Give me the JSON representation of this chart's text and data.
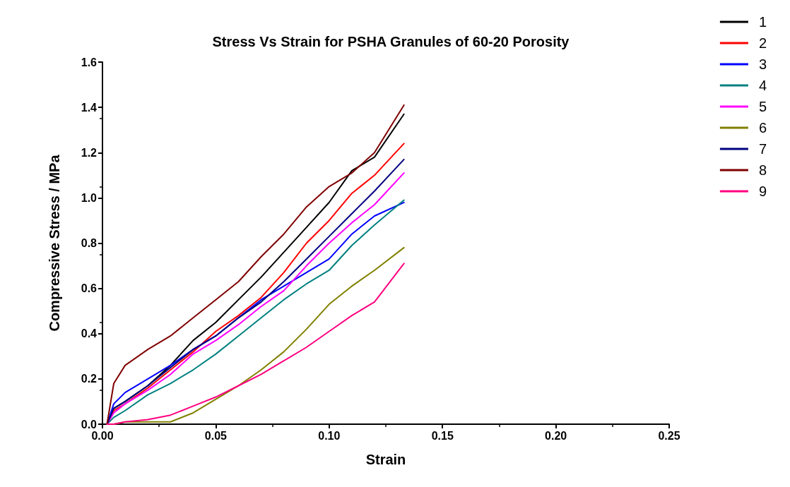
{
  "chart_data": {
    "type": "line",
    "title": "Stress Vs Strain for PSHA Granules of 60-20 Porosity",
    "xlabel": "Strain",
    "ylabel": "Compressive Stress / MPa",
    "xlim": [
      0,
      0.25
    ],
    "xticks": [
      {
        "value": 0,
        "label": "0.00"
      },
      {
        "value": 0.05,
        "label": "0.05"
      },
      {
        "value": 0.1,
        "label": "0.10"
      },
      {
        "value": 0.15,
        "label": "0.15"
      },
      {
        "value": 0.2,
        "label": "0.20"
      },
      {
        "value": 0.25,
        "label": "0.25"
      }
    ],
    "ylim": [
      0,
      1.6
    ],
    "yticks": [
      {
        "value": 0,
        "label": "0.0"
      },
      {
        "value": 0.2,
        "label": "0.2"
      },
      {
        "value": 0.4,
        "label": "0.4"
      },
      {
        "value": 0.6,
        "label": "0.6"
      },
      {
        "value": 0.8,
        "label": "0.8"
      },
      {
        "value": 1,
        "label": "1.0"
      },
      {
        "value": 1.2,
        "label": "1.2"
      },
      {
        "value": 1.4,
        "label": "1.4"
      },
      {
        "value": 1.6,
        "label": "1.6"
      }
    ],
    "grid": false,
    "legend": "top right",
    "marker": "none",
    "line_style": "solid",
    "x": [
      0.002,
      0.005,
      0.01,
      0.02,
      0.03,
      0.04,
      0.05,
      0.06,
      0.07,
      0.08,
      0.09,
      0.1,
      0.11,
      0.12,
      0.133
    ],
    "series": [
      {
        "name": "1",
        "color": "#000000",
        "values": [
          0,
          0.07,
          0.1,
          0.17,
          0.26,
          0.37,
          0.45,
          0.55,
          0.65,
          0.76,
          0.87,
          0.98,
          1.12,
          1.18,
          1.37
        ]
      },
      {
        "name": "2",
        "color": "#ff0000",
        "values": [
          0,
          0.06,
          0.09,
          0.16,
          0.24,
          0.32,
          0.41,
          0.48,
          0.56,
          0.67,
          0.8,
          0.9,
          1.02,
          1.1,
          1.24
        ]
      },
      {
        "name": "3",
        "color": "#0000ff",
        "values": [
          0,
          0.09,
          0.14,
          0.2,
          0.26,
          0.33,
          0.39,
          0.47,
          0.55,
          0.61,
          0.67,
          0.73,
          0.84,
          0.92,
          0.98
        ]
      },
      {
        "name": "4",
        "color": "#008080",
        "values": [
          0,
          0.03,
          0.06,
          0.13,
          0.18,
          0.24,
          0.31,
          0.39,
          0.47,
          0.55,
          0.62,
          0.68,
          0.79,
          0.88,
          0.99
        ]
      },
      {
        "name": "5",
        "color": "#ff00ff",
        "values": [
          0,
          0.05,
          0.09,
          0.15,
          0.22,
          0.31,
          0.37,
          0.44,
          0.52,
          0.59,
          0.7,
          0.8,
          0.89,
          0.97,
          1.11
        ]
      },
      {
        "name": "6",
        "color": "#808000",
        "values": [
          0,
          0,
          0.01,
          0.01,
          0.01,
          0.05,
          0.11,
          0.17,
          0.24,
          0.32,
          0.42,
          0.53,
          0.61,
          0.68,
          0.78
        ]
      },
      {
        "name": "7",
        "color": "#000080",
        "values": [
          0,
          0.07,
          0.1,
          0.17,
          0.25,
          0.33,
          0.39,
          0.47,
          0.54,
          0.63,
          0.73,
          0.83,
          0.93,
          1.03,
          1.17
        ]
      },
      {
        "name": "8",
        "color": "#800000",
        "values": [
          0,
          0.18,
          0.26,
          0.33,
          0.39,
          0.47,
          0.55,
          0.63,
          0.74,
          0.84,
          0.96,
          1.05,
          1.11,
          1.2,
          1.41
        ]
      },
      {
        "name": "9",
        "color": "#ff0080",
        "values": [
          0,
          0,
          0.01,
          0.02,
          0.04,
          0.08,
          0.12,
          0.17,
          0.22,
          0.28,
          0.34,
          0.41,
          0.48,
          0.54,
          0.71
        ]
      }
    ]
  }
}
